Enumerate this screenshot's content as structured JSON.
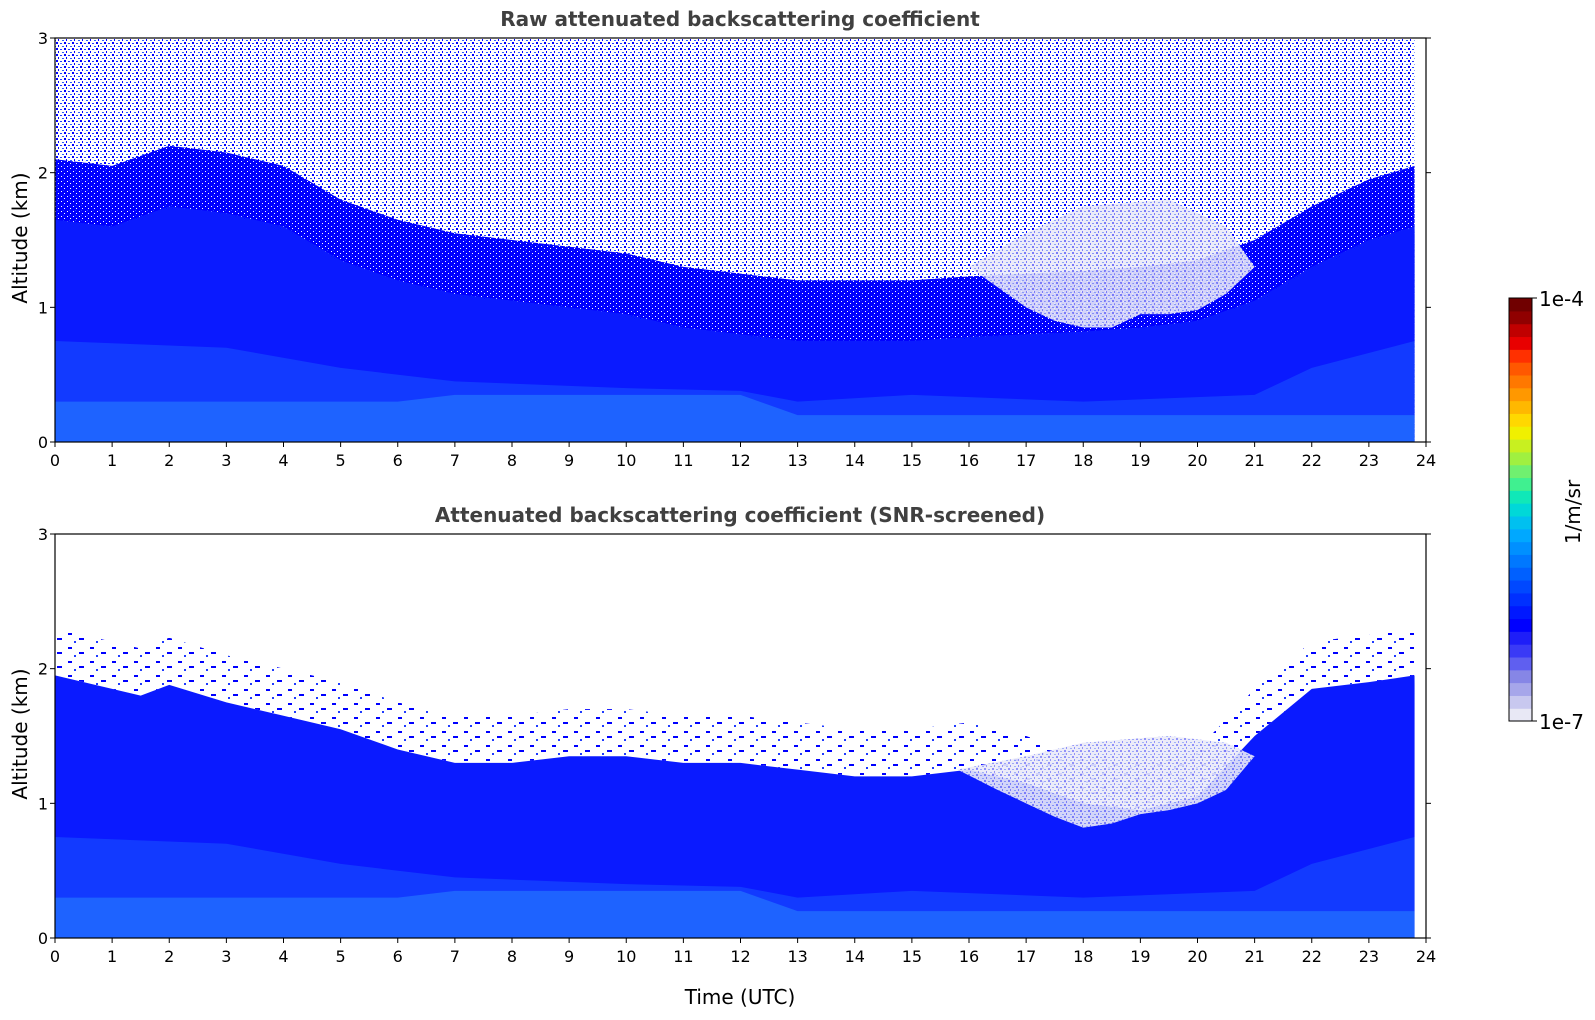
{
  "chart_data": [
    {
      "type": "heatmap",
      "title": "Raw attenuated backscattering coefficient",
      "xlabel": "",
      "ylabel": "Altitude (km)",
      "xlim": [
        0,
        24
      ],
      "ylim": [
        0,
        3
      ],
      "xticks": [
        "0",
        "1",
        "2",
        "3",
        "4",
        "5",
        "6",
        "7",
        "8",
        "9",
        "10",
        "11",
        "12",
        "13",
        "14",
        "15",
        "16",
        "17",
        "18",
        "19",
        "20",
        "21",
        "22",
        "23",
        "24"
      ],
      "yticks": [
        "0",
        "1",
        "2",
        "3"
      ],
      "data_end_time": 23.8,
      "screened": false,
      "boundary_layer_top_km": [
        [
          0,
          1.65
        ],
        [
          1,
          1.6
        ],
        [
          2,
          1.75
        ],
        [
          3,
          1.7
        ],
        [
          4,
          1.6
        ],
        [
          5,
          1.35
        ],
        [
          6,
          1.2
        ],
        [
          7,
          1.1
        ],
        [
          8,
          1.05
        ],
        [
          9,
          1.0
        ],
        [
          10,
          0.95
        ],
        [
          11,
          0.85
        ],
        [
          12,
          0.8
        ],
        [
          13,
          0.75
        ],
        [
          14,
          0.75
        ],
        [
          15,
          0.75
        ],
        [
          16,
          0.78
        ],
        [
          17,
          0.8
        ],
        [
          18,
          0.82
        ],
        [
          19,
          0.85
        ],
        [
          20,
          0.9
        ],
        [
          21,
          1.05
        ],
        [
          22,
          1.3
        ],
        [
          23,
          1.5
        ],
        [
          23.8,
          1.6
        ]
      ],
      "clear_region": [
        [
          16,
          1.3
        ],
        [
          16.5,
          1.15
        ],
        [
          17,
          1.0
        ],
        [
          17.5,
          0.9
        ],
        [
          18,
          0.85
        ],
        [
          18.5,
          0.85
        ],
        [
          19,
          0.95
        ],
        [
          19.5,
          0.95
        ],
        [
          20,
          0.98
        ],
        [
          20.5,
          1.1
        ],
        [
          21,
          1.3
        ],
        [
          20.5,
          1.6
        ],
        [
          19.5,
          1.8
        ],
        [
          18,
          1.75
        ],
        [
          17,
          1.55
        ]
      ]
    },
    {
      "type": "heatmap",
      "title": "Attenuated backscattering coefficient (SNR-screened)",
      "xlabel": "Time (UTC)",
      "ylabel": "Altitude (km)",
      "xlim": [
        0,
        24
      ],
      "ylim": [
        0,
        3
      ],
      "xticks": [
        "0",
        "1",
        "2",
        "3",
        "4",
        "5",
        "6",
        "7",
        "8",
        "9",
        "10",
        "11",
        "12",
        "13",
        "14",
        "15",
        "16",
        "17",
        "18",
        "19",
        "20",
        "21",
        "22",
        "23",
        "24"
      ],
      "yticks": [
        "0",
        "1",
        "2",
        "3"
      ],
      "data_end_time": 23.8,
      "screened": true,
      "signal_top_km": [
        [
          0,
          1.95
        ],
        [
          0.5,
          1.9
        ],
        [
          1,
          1.85
        ],
        [
          1.5,
          1.8
        ],
        [
          2,
          1.88
        ],
        [
          3,
          1.75
        ],
        [
          4,
          1.65
        ],
        [
          5,
          1.55
        ],
        [
          6,
          1.4
        ],
        [
          7,
          1.3
        ],
        [
          8,
          1.3
        ],
        [
          9,
          1.35
        ],
        [
          10,
          1.35
        ],
        [
          11,
          1.3
        ],
        [
          12,
          1.3
        ],
        [
          13,
          1.25
        ],
        [
          14,
          1.2
        ],
        [
          15,
          1.2
        ],
        [
          16,
          1.25
        ],
        [
          17,
          1.15
        ],
        [
          18,
          1.0
        ],
        [
          19,
          0.95
        ],
        [
          20,
          1.05
        ],
        [
          21,
          1.5
        ],
        [
          22,
          1.85
        ],
        [
          23,
          1.9
        ],
        [
          23.8,
          1.95
        ]
      ],
      "clear_region": [
        [
          15.8,
          1.25
        ],
        [
          16.5,
          1.1
        ],
        [
          17,
          1.0
        ],
        [
          17.5,
          0.9
        ],
        [
          18,
          0.82
        ],
        [
          18.5,
          0.85
        ],
        [
          19,
          0.92
        ],
        [
          19.5,
          0.95
        ],
        [
          20,
          1.0
        ],
        [
          20.5,
          1.1
        ],
        [
          21,
          1.35
        ],
        [
          20.5,
          1.45
        ],
        [
          19.5,
          1.5
        ],
        [
          18,
          1.45
        ],
        [
          17,
          1.35
        ]
      ]
    }
  ],
  "colorbar": {
    "label": "1/m/sr",
    "max_label": "1e-4",
    "min_label": "1e-7",
    "min": 1e-07,
    "max": 0.0001,
    "scale": "log",
    "colors": [
      "#e8e8f5",
      "#c8c8ef",
      "#a6a6ea",
      "#8686e6",
      "#5f5ff0",
      "#3a3af6",
      "#1e1ef8",
      "#0000ff",
      "#0018ff",
      "#0030ff",
      "#0048ff",
      "#0060ff",
      "#0078ff",
      "#0090ff",
      "#00a8ff",
      "#00c0f0",
      "#00d8d8",
      "#10e8b8",
      "#40f090",
      "#70f070",
      "#a0f040",
      "#c8f020",
      "#f0f000",
      "#ffd800",
      "#ffb800",
      "#ff9800",
      "#ff7800",
      "#ff5800",
      "#ff3000",
      "#e80000",
      "#c00000",
      "#900000",
      "#700000"
    ]
  }
}
